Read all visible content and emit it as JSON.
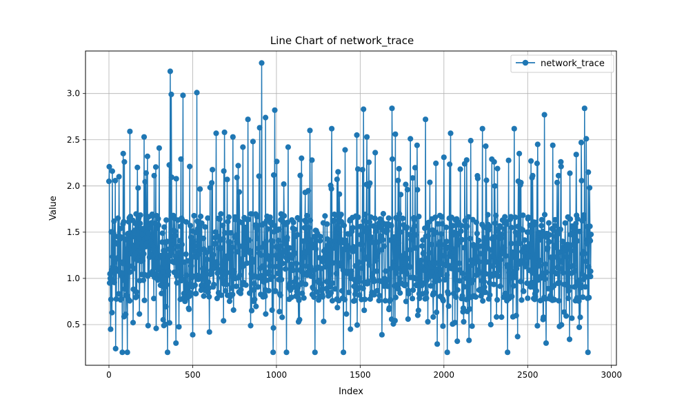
{
  "chart_data": {
    "type": "line",
    "title": "Line Chart of network_trace",
    "xlabel": "Index",
    "ylabel": "Value",
    "xlim": [
      -140,
      3030
    ],
    "ylim": [
      0.06,
      3.46
    ],
    "x_ticks": [
      0,
      500,
      1000,
      1500,
      2000,
      2500,
      3000
    ],
    "y_ticks": [
      0.5,
      1.0,
      1.5,
      2.0,
      2.5,
      3.0
    ],
    "x_tick_labels": [
      "0",
      "500",
      "1000",
      "1500",
      "2000",
      "2500",
      "3000"
    ],
    "y_tick_labels": [
      "0.5",
      "1.0",
      "1.5",
      "2.0",
      "2.5",
      "3.0"
    ],
    "grid": true,
    "legend_position": "top-right",
    "n_points": 2880,
    "series": [
      {
        "name": "network_trace",
        "color": "#1f77b4",
        "marker": "circle",
        "sampled_points": [
          [
            0,
            2.05
          ],
          [
            10,
            0.45
          ],
          [
            20,
            2.16
          ],
          [
            40,
            0.24
          ],
          [
            60,
            2.1
          ],
          [
            80,
            0.2
          ],
          [
            85,
            2.35
          ],
          [
            110,
            0.2
          ],
          [
            125,
            2.59
          ],
          [
            170,
            2.2
          ],
          [
            210,
            2.53
          ],
          [
            230,
            2.32
          ],
          [
            300,
            2.41
          ],
          [
            350,
            0.2
          ],
          [
            366,
            3.24
          ],
          [
            372,
            2.99
          ],
          [
            400,
            0.3
          ],
          [
            430,
            2.29
          ],
          [
            442,
            2.98
          ],
          [
            500,
            0.39
          ],
          [
            525,
            3.01
          ],
          [
            600,
            0.42
          ],
          [
            640,
            2.57
          ],
          [
            690,
            2.58
          ],
          [
            740,
            2.53
          ],
          [
            800,
            2.42
          ],
          [
            830,
            2.72
          ],
          [
            860,
            2.48
          ],
          [
            900,
            2.63
          ],
          [
            912,
            3.33
          ],
          [
            935,
            2.74
          ],
          [
            980,
            0.2
          ],
          [
            990,
            2.82
          ],
          [
            1060,
            0.2
          ],
          [
            1070,
            2.42
          ],
          [
            1150,
            2.3
          ],
          [
            1200,
            2.6
          ],
          [
            1230,
            0.2
          ],
          [
            1330,
            2.62
          ],
          [
            1400,
            0.2
          ],
          [
            1410,
            2.39
          ],
          [
            1480,
            2.55
          ],
          [
            1520,
            2.83
          ],
          [
            1540,
            2.53
          ],
          [
            1590,
            2.36
          ],
          [
            1630,
            0.39
          ],
          [
            1690,
            2.84
          ],
          [
            1710,
            2.56
          ],
          [
            1800,
            2.51
          ],
          [
            1840,
            2.44
          ],
          [
            1890,
            2.72
          ],
          [
            1960,
            0.29
          ],
          [
            2000,
            2.31
          ],
          [
            2020,
            0.2
          ],
          [
            2040,
            2.57
          ],
          [
            2080,
            0.32
          ],
          [
            2150,
            0.33
          ],
          [
            2160,
            2.49
          ],
          [
            2200,
            2.11
          ],
          [
            2230,
            2.62
          ],
          [
            2250,
            2.43
          ],
          [
            2300,
            2.26
          ],
          [
            2380,
            0.2
          ],
          [
            2420,
            2.62
          ],
          [
            2440,
            0.37
          ],
          [
            2450,
            2.35
          ],
          [
            2520,
            2.27
          ],
          [
            2560,
            2.45
          ],
          [
            2600,
            2.77
          ],
          [
            2610,
            0.3
          ],
          [
            2650,
            2.44
          ],
          [
            2700,
            2.21
          ],
          [
            2750,
            0.34
          ],
          [
            2790,
            2.34
          ],
          [
            2820,
            2.47
          ],
          [
            2840,
            2.84
          ],
          [
            2850,
            2.51
          ],
          [
            2860,
            0.2
          ],
          [
            2870,
            1.98
          ],
          [
            2875,
            1.02
          ]
        ]
      }
    ]
  }
}
